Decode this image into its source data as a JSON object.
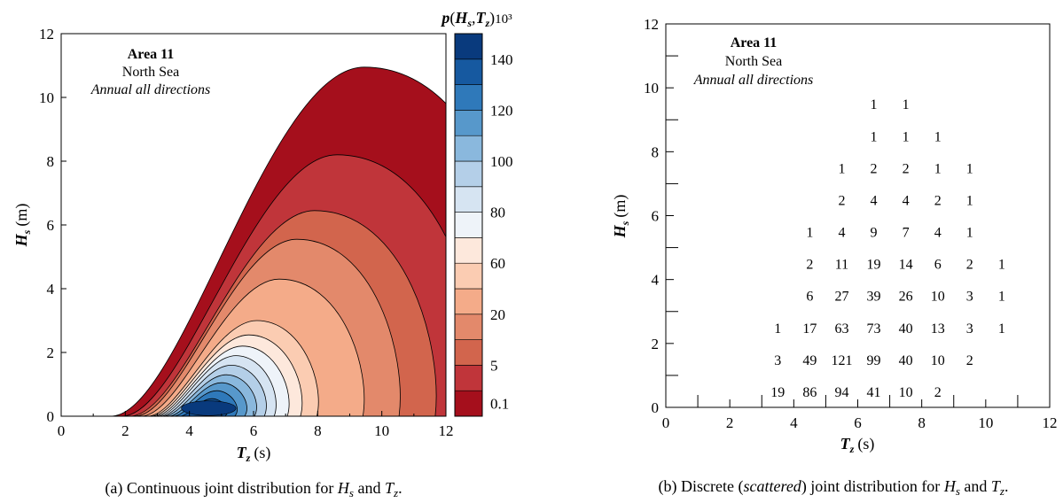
{
  "chart_data": [
    {
      "type": "contour",
      "caption": {
        "prefix": "(a) Continuous joint distribution for ",
        "var1": "H",
        "var1_sub": "s",
        "mid": " and ",
        "var2": "T",
        "var2_sub": "z",
        "suffix": "."
      },
      "xlabel": {
        "var": "T",
        "sub": "z",
        "unit": "(s)"
      },
      "ylabel": {
        "var": "H",
        "sub": "s",
        "unit": "(m)"
      },
      "xlim": [
        0,
        12
      ],
      "ylim": [
        0,
        12
      ],
      "xticks": [
        "0",
        "2",
        "4",
        "6",
        "8",
        "10",
        "12"
      ],
      "yticks": [
        "0",
        "2",
        "4",
        "6",
        "8",
        "10",
        "12"
      ],
      "annotation": {
        "title": "Area 11",
        "line2": "North Sea",
        "line3": "Annual all directions"
      },
      "colorbar": {
        "title_p": "p",
        "title_H": "H",
        "title_Hsub": "s",
        "title_T": "T",
        "title_Tsub": "z",
        "title_scale": "10³",
        "tick_labels": [
          "0.1",
          "5",
          "20",
          "60",
          "80",
          "100",
          "120",
          "140"
        ],
        "colors": [
          "#a50f1c",
          "#c0353a",
          "#d2654d",
          "#e3896b",
          "#f4ab89",
          "#fbccb2",
          "#fde8dc",
          "#eef3f9",
          "#d6e4f2",
          "#b4cfe8",
          "#8ab8dd",
          "#5798cb",
          "#2f79ba",
          "#1659a0",
          "#093a7d"
        ]
      },
      "peak": {
        "Tz": 4.6,
        "Hs": 0.55
      },
      "levels": [
        {
          "Hs_max": 10.95,
          "Tz_at_max": 9.45,
          "Tz_left": 1.55
        },
        {
          "Hs_max": 8.2,
          "Tz_at_max": 8.6,
          "Tz_left": 1.9
        },
        {
          "Hs_max": 6.45,
          "Tz_at_max": 7.9,
          "Tz_left": 2.15
        },
        {
          "Hs_max": 5.55,
          "Tz_at_max": 7.35,
          "Tz_left": 2.3
        },
        {
          "Hs_max": 4.3,
          "Tz_at_max": 6.8,
          "Tz_left": 2.5
        },
        {
          "Hs_max": 3.0,
          "Tz_at_max": 6.1,
          "Tz_left": 2.7
        },
        {
          "Hs_max": 2.55,
          "Tz_at_max": 5.85,
          "Tz_left": 2.8
        },
        {
          "Hs_max": 2.2,
          "Tz_at_max": 5.65,
          "Tz_left": 2.9
        },
        {
          "Hs_max": 1.9,
          "Tz_at_max": 5.45,
          "Tz_left": 3.0
        },
        {
          "Hs_max": 1.6,
          "Tz_at_max": 5.3,
          "Tz_left": 3.1
        },
        {
          "Hs_max": 1.3,
          "Tz_at_max": 5.15,
          "Tz_left": 3.2
        },
        {
          "Hs_max": 1.05,
          "Tz_at_max": 5.0,
          "Tz_left": 3.35
        },
        {
          "Hs_max": 0.8,
          "Tz_at_max": 4.85,
          "Tz_left": 3.5
        },
        {
          "Hs_max": 0.55,
          "Tz_at_max": 4.7,
          "Tz_left": 3.7
        }
      ]
    },
    {
      "type": "table",
      "caption": {
        "prefix": "(b) Discrete (",
        "italic": "scattered",
        "mid1": ") joint distribution for ",
        "var1": "H",
        "var1_sub": "s",
        "mid2": " and ",
        "var2": "T",
        "var2_sub": "z",
        "suffix": "."
      },
      "xlabel": {
        "var": "T",
        "sub": "z",
        "unit": "(s)"
      },
      "ylabel": {
        "var": "H",
        "sub": "s",
        "unit": "(m)"
      },
      "xlim": [
        0,
        12
      ],
      "ylim": [
        0,
        12
      ],
      "xticks": [
        "0",
        "2",
        "4",
        "6",
        "8",
        "10",
        "12"
      ],
      "yticks": [
        "0",
        "2",
        "4",
        "6",
        "8",
        "10",
        "12"
      ],
      "annotation": {
        "title": "Area 11",
        "line2": "North Sea",
        "line3": "Annual all directions"
      },
      "cells": [
        {
          "Tz": 3.5,
          "Hs": 0.5,
          "v": "19"
        },
        {
          "Tz": 4.5,
          "Hs": 0.5,
          "v": "86"
        },
        {
          "Tz": 5.5,
          "Hs": 0.5,
          "v": "94"
        },
        {
          "Tz": 6.5,
          "Hs": 0.5,
          "v": "41"
        },
        {
          "Tz": 7.5,
          "Hs": 0.5,
          "v": "10"
        },
        {
          "Tz": 8.5,
          "Hs": 0.5,
          "v": "2"
        },
        {
          "Tz": 3.5,
          "Hs": 1.5,
          "v": "3"
        },
        {
          "Tz": 4.5,
          "Hs": 1.5,
          "v": "49"
        },
        {
          "Tz": 5.5,
          "Hs": 1.5,
          "v": "121"
        },
        {
          "Tz": 6.5,
          "Hs": 1.5,
          "v": "99"
        },
        {
          "Tz": 7.5,
          "Hs": 1.5,
          "v": "40"
        },
        {
          "Tz": 8.5,
          "Hs": 1.5,
          "v": "10"
        },
        {
          "Tz": 9.5,
          "Hs": 1.5,
          "v": "2"
        },
        {
          "Tz": 3.5,
          "Hs": 2.5,
          "v": "1"
        },
        {
          "Tz": 4.5,
          "Hs": 2.5,
          "v": "17"
        },
        {
          "Tz": 5.5,
          "Hs": 2.5,
          "v": "63"
        },
        {
          "Tz": 6.5,
          "Hs": 2.5,
          "v": "73"
        },
        {
          "Tz": 7.5,
          "Hs": 2.5,
          "v": "40"
        },
        {
          "Tz": 8.5,
          "Hs": 2.5,
          "v": "13"
        },
        {
          "Tz": 9.5,
          "Hs": 2.5,
          "v": "3"
        },
        {
          "Tz": 10.5,
          "Hs": 2.5,
          "v": "1"
        },
        {
          "Tz": 4.5,
          "Hs": 3.5,
          "v": "6"
        },
        {
          "Tz": 5.5,
          "Hs": 3.5,
          "v": "27"
        },
        {
          "Tz": 6.5,
          "Hs": 3.5,
          "v": "39"
        },
        {
          "Tz": 7.5,
          "Hs": 3.5,
          "v": "26"
        },
        {
          "Tz": 8.5,
          "Hs": 3.5,
          "v": "10"
        },
        {
          "Tz": 9.5,
          "Hs": 3.5,
          "v": "3"
        },
        {
          "Tz": 10.5,
          "Hs": 3.5,
          "v": "1"
        },
        {
          "Tz": 4.5,
          "Hs": 4.5,
          "v": "2"
        },
        {
          "Tz": 5.5,
          "Hs": 4.5,
          "v": "11"
        },
        {
          "Tz": 6.5,
          "Hs": 4.5,
          "v": "19"
        },
        {
          "Tz": 7.5,
          "Hs": 4.5,
          "v": "14"
        },
        {
          "Tz": 8.5,
          "Hs": 4.5,
          "v": "6"
        },
        {
          "Tz": 9.5,
          "Hs": 4.5,
          "v": "2"
        },
        {
          "Tz": 10.5,
          "Hs": 4.5,
          "v": "1"
        },
        {
          "Tz": 4.5,
          "Hs": 5.5,
          "v": "1"
        },
        {
          "Tz": 5.5,
          "Hs": 5.5,
          "v": "4"
        },
        {
          "Tz": 6.5,
          "Hs": 5.5,
          "v": "9"
        },
        {
          "Tz": 7.5,
          "Hs": 5.5,
          "v": "7"
        },
        {
          "Tz": 8.5,
          "Hs": 5.5,
          "v": "4"
        },
        {
          "Tz": 9.5,
          "Hs": 5.5,
          "v": "1"
        },
        {
          "Tz": 5.5,
          "Hs": 6.5,
          "v": "2"
        },
        {
          "Tz": 6.5,
          "Hs": 6.5,
          "v": "4"
        },
        {
          "Tz": 7.5,
          "Hs": 6.5,
          "v": "4"
        },
        {
          "Tz": 8.5,
          "Hs": 6.5,
          "v": "2"
        },
        {
          "Tz": 9.5,
          "Hs": 6.5,
          "v": "1"
        },
        {
          "Tz": 5.5,
          "Hs": 7.5,
          "v": "1"
        },
        {
          "Tz": 6.5,
          "Hs": 7.5,
          "v": "2"
        },
        {
          "Tz": 7.5,
          "Hs": 7.5,
          "v": "2"
        },
        {
          "Tz": 8.5,
          "Hs": 7.5,
          "v": "1"
        },
        {
          "Tz": 9.5,
          "Hs": 7.5,
          "v": "1"
        },
        {
          "Tz": 6.5,
          "Hs": 8.5,
          "v": "1"
        },
        {
          "Tz": 7.5,
          "Hs": 8.5,
          "v": "1"
        },
        {
          "Tz": 8.5,
          "Hs": 8.5,
          "v": "1"
        },
        {
          "Tz": 6.5,
          "Hs": 9.5,
          "v": "1"
        },
        {
          "Tz": 7.5,
          "Hs": 9.5,
          "v": "1"
        }
      ]
    }
  ]
}
